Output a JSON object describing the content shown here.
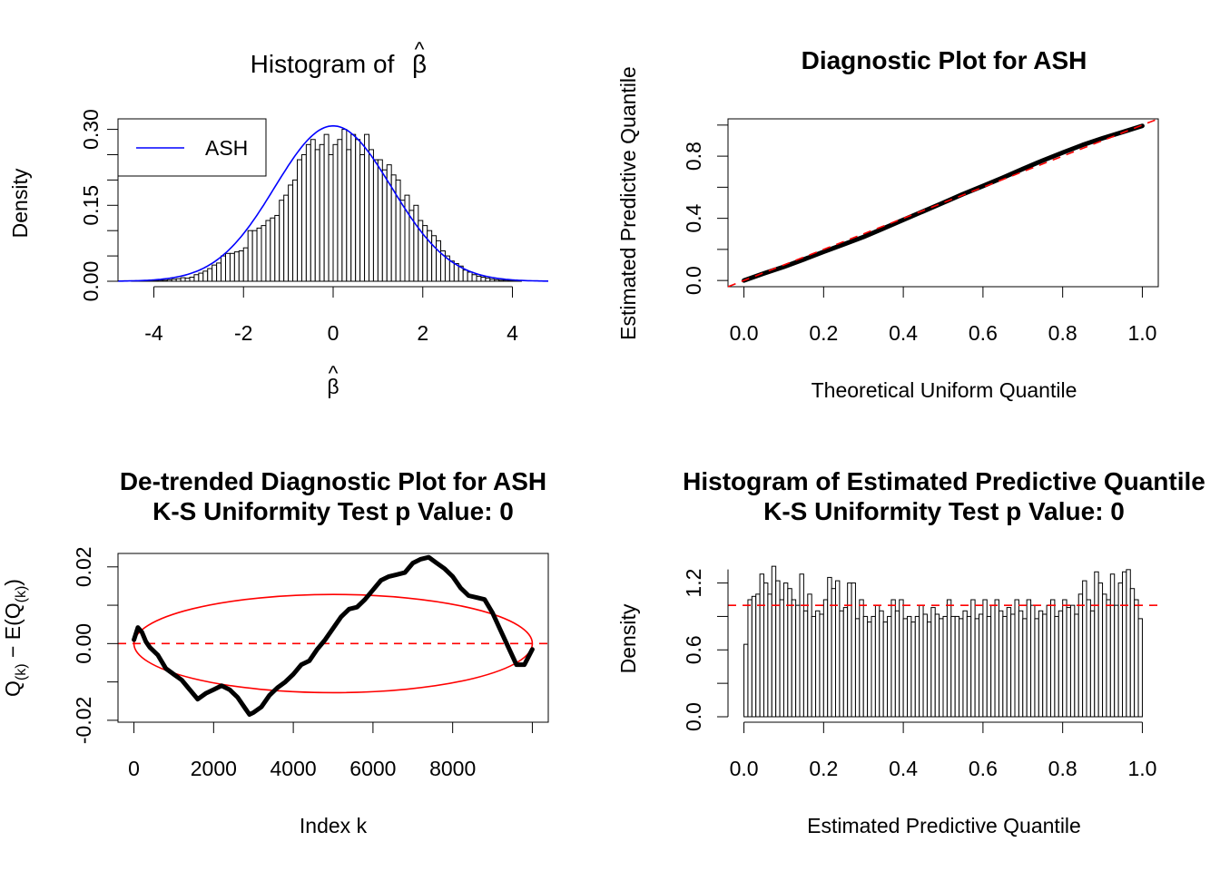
{
  "colors": {
    "ash_line": "#0000ff",
    "reference": "#ff0000",
    "bars": "#000000",
    "points": "#000000"
  },
  "chart_data": [
    {
      "id": "p1",
      "type": "bar",
      "title": "Histogram of β̂",
      "title_text": "Histogram of ",
      "title_symbol": "β",
      "title_hat": "^",
      "xlabel_symbol": "β",
      "xlabel_hat": "^",
      "ylabel": "Density",
      "xlim": [
        -4.8,
        4.8
      ],
      "ylim": [
        0,
        0.31
      ],
      "xticks": [
        -4,
        -2,
        0,
        2,
        4
      ],
      "xtick_labels": [
        "-4",
        "-2",
        "0",
        "2",
        "4"
      ],
      "yticks": [
        0.0,
        0.15,
        0.3
      ],
      "ytick_labels": [
        "0.00",
        "0.15",
        "0.30"
      ],
      "yminor": [
        0.05,
        0.1,
        0.2,
        0.25
      ],
      "bin_width": 0.1,
      "legend": {
        "label": "ASH",
        "position": "top-left"
      },
      "curve": {
        "name": "ASH",
        "kind": "normal",
        "mean": 0,
        "sd": 1.3
      },
      "bins": [
        [
          -4.8,
          0
        ],
        [
          -4.7,
          0.001
        ],
        [
          -4.6,
          0
        ],
        [
          -4.5,
          0.001
        ],
        [
          -4.4,
          0.001
        ],
        [
          -4.3,
          0.001
        ],
        [
          -4.2,
          0.001
        ],
        [
          -4.1,
          0.001
        ],
        [
          -4.0,
          0.001
        ],
        [
          -3.9,
          0.002
        ],
        [
          -3.8,
          0.002
        ],
        [
          -3.7,
          0.003
        ],
        [
          -3.6,
          0.004
        ],
        [
          -3.5,
          0.005
        ],
        [
          -3.4,
          0.007
        ],
        [
          -3.3,
          0.006
        ],
        [
          -3.2,
          0.008
        ],
        [
          -3.1,
          0.013
        ],
        [
          -3.0,
          0.016
        ],
        [
          -2.9,
          0.02
        ],
        [
          -2.8,
          0.025
        ],
        [
          -2.7,
          0.032
        ],
        [
          -2.6,
          0.036
        ],
        [
          -2.5,
          0.05
        ],
        [
          -2.4,
          0.055
        ],
        [
          -2.3,
          0.055
        ],
        [
          -2.2,
          0.058
        ],
        [
          -2.1,
          0.06
        ],
        [
          -2.0,
          0.066
        ],
        [
          -1.9,
          0.1
        ],
        [
          -1.8,
          0.1
        ],
        [
          -1.7,
          0.105
        ],
        [
          -1.6,
          0.11
        ],
        [
          -1.5,
          0.12
        ],
        [
          -1.4,
          0.125
        ],
        [
          -1.3,
          0.13
        ],
        [
          -1.2,
          0.16
        ],
        [
          -1.1,
          0.17
        ],
        [
          -1.0,
          0.19
        ],
        [
          -0.9,
          0.2
        ],
        [
          -0.8,
          0.24
        ],
        [
          -0.7,
          0.25
        ],
        [
          -0.6,
          0.27
        ],
        [
          -0.5,
          0.28
        ],
        [
          -0.4,
          0.26
        ],
        [
          -0.3,
          0.27
        ],
        [
          -0.2,
          0.29
        ],
        [
          -0.1,
          0.25
        ],
        [
          0.0,
          0.27
        ],
        [
          0.1,
          0.28
        ],
        [
          0.2,
          0.3
        ],
        [
          0.3,
          0.26
        ],
        [
          0.4,
          0.29
        ],
        [
          0.5,
          0.28
        ],
        [
          0.6,
          0.25
        ],
        [
          0.7,
          0.29
        ],
        [
          0.8,
          0.26
        ],
        [
          0.9,
          0.24
        ],
        [
          1.0,
          0.24
        ],
        [
          1.1,
          0.22
        ],
        [
          1.2,
          0.23
        ],
        [
          1.3,
          0.21
        ],
        [
          1.4,
          0.2
        ],
        [
          1.5,
          0.16
        ],
        [
          1.6,
          0.17
        ],
        [
          1.7,
          0.14
        ],
        [
          1.8,
          0.15
        ],
        [
          1.9,
          0.12
        ],
        [
          2.0,
          0.11
        ],
        [
          2.1,
          0.1
        ],
        [
          2.2,
          0.09
        ],
        [
          2.3,
          0.08
        ],
        [
          2.4,
          0.06
        ],
        [
          2.5,
          0.05
        ],
        [
          2.6,
          0.04
        ],
        [
          2.7,
          0.035
        ],
        [
          2.8,
          0.03
        ],
        [
          2.9,
          0.022
        ],
        [
          3.0,
          0.018
        ],
        [
          3.1,
          0.013
        ],
        [
          3.2,
          0.01
        ],
        [
          3.3,
          0.008
        ],
        [
          3.4,
          0.006
        ],
        [
          3.5,
          0.004
        ],
        [
          3.6,
          0.003
        ],
        [
          3.7,
          0.002
        ],
        [
          3.8,
          0.002
        ],
        [
          3.9,
          0.001
        ],
        [
          4.0,
          0.001
        ],
        [
          4.1,
          0.001
        ]
      ]
    },
    {
      "id": "p2",
      "type": "scatter",
      "title": "Diagnostic Plot for ASH",
      "xlabel": "Theoretical Uniform Quantile",
      "ylabel": "Estimated Predictive Quantile",
      "xlim": [
        -0.04,
        1.04
      ],
      "ylim": [
        -0.04,
        1.04
      ],
      "xticks": [
        0,
        0.2,
        0.4,
        0.6,
        0.8,
        1.0
      ],
      "xtick_labels": [
        "0.0",
        "0.2",
        "0.4",
        "0.6",
        "0.8",
        "1.0"
      ],
      "yticks": [
        0,
        0.4,
        0.8
      ],
      "ytick_labels": [
        "0.0",
        "0.4",
        "0.8"
      ],
      "yminor": [
        0.2,
        0.6,
        1.0
      ],
      "reference_line": {
        "intercept": 0,
        "slope": 1,
        "style": "dashed"
      },
      "x": [
        0,
        0.05,
        0.1,
        0.15,
        0.2,
        0.25,
        0.3,
        0.35,
        0.4,
        0.45,
        0.5,
        0.55,
        0.6,
        0.65,
        0.7,
        0.75,
        0.8,
        0.85,
        0.9,
        0.95,
        1.0
      ],
      "y": [
        0.0,
        0.045,
        0.088,
        0.135,
        0.184,
        0.232,
        0.28,
        0.335,
        0.39,
        0.445,
        0.5,
        0.556,
        0.608,
        0.662,
        0.718,
        0.772,
        0.823,
        0.872,
        0.915,
        0.955,
        0.995
      ]
    },
    {
      "id": "p3",
      "type": "scatter",
      "title_lines": [
        "De-trended Diagnostic Plot for ASH",
        "K-S Uniformity Test p Value: 0"
      ],
      "xlabel": "Index k",
      "ylabel_parts": [
        "Q",
        "(k)",
        " − E(Q",
        "(k)",
        ")"
      ],
      "xlim": [
        -400,
        10400
      ],
      "ylim": [
        -0.0205,
        0.0235
      ],
      "xticks": [
        0,
        2000,
        4000,
        6000,
        8000
      ],
      "xtick_labels": [
        "0",
        "2000",
        "4000",
        "6000",
        "8000"
      ],
      "extra_xtick": 10000,
      "yticks": [
        -0.02,
        0,
        0.02
      ],
      "ytick_labels": [
        "-0.02",
        "0.00",
        "0.02"
      ],
      "yminor": [
        -0.01,
        0.01
      ],
      "reference_line": {
        "y": 0,
        "style": "dashed"
      },
      "ellipse": {
        "cx": 5000,
        "cy": 0,
        "rx": 5000,
        "ry": 0.0128
      },
      "x": [
        0,
        100,
        200,
        300,
        400,
        600,
        800,
        1000,
        1200,
        1400,
        1600,
        1800,
        2000,
        2200,
        2400,
        2600,
        2800,
        2900,
        3000,
        3200,
        3400,
        3600,
        3800,
        4000,
        4200,
        4400,
        4600,
        4800,
        5000,
        5200,
        5400,
        5600,
        5800,
        6000,
        6200,
        6400,
        6600,
        6800,
        7000,
        7200,
        7400,
        7600,
        7800,
        8000,
        8200,
        8400,
        8600,
        8800,
        9000,
        9200,
        9400,
        9600,
        9800,
        10000
      ],
      "y": [
        0.001,
        0.0042,
        0.003,
        0.0005,
        -0.001,
        -0.003,
        -0.0065,
        -0.008,
        -0.0095,
        -0.012,
        -0.0145,
        -0.013,
        -0.012,
        -0.011,
        -0.012,
        -0.014,
        -0.017,
        -0.0185,
        -0.018,
        -0.0165,
        -0.0135,
        -0.0115,
        -0.01,
        -0.008,
        -0.0055,
        -0.0045,
        -0.0015,
        0.001,
        0.004,
        0.007,
        0.009,
        0.0095,
        0.0115,
        0.014,
        0.0165,
        0.0175,
        0.018,
        0.0185,
        0.021,
        0.022,
        0.0225,
        0.021,
        0.0195,
        0.0175,
        0.0145,
        0.0125,
        0.012,
        0.0115,
        0.008,
        0.0035,
        -0.001,
        -0.0055,
        -0.0055,
        -0.0015
      ]
    },
    {
      "id": "p4",
      "type": "bar",
      "title_lines": [
        "Histogram of Estimated Predictive Quantile",
        "K-S Uniformity Test p Value: 0"
      ],
      "xlabel": "Estimated Predictive Quantile",
      "ylabel": "Density",
      "xlim": [
        -0.04,
        1.04
      ],
      "ylim": [
        0,
        1.4
      ],
      "xticks": [
        0,
        0.2,
        0.4,
        0.6,
        0.8,
        1.0
      ],
      "xtick_labels": [
        "0.0",
        "0.2",
        "0.4",
        "0.6",
        "0.8",
        "1.0"
      ],
      "yticks": [
        0,
        0.6,
        1.2
      ],
      "ytick_labels": [
        "0.0",
        "0.6",
        "1.2"
      ],
      "yminor": [
        0.3,
        0.9
      ],
      "bin_width": 0.01,
      "reference_line": {
        "y": 1.0,
        "style": "dashed"
      },
      "values": [
        0.65,
        1.05,
        1.08,
        1.1,
        1.28,
        1.2,
        1.1,
        1.35,
        1.22,
        1.05,
        1.2,
        1.15,
        1.05,
        1.0,
        1.28,
        0.95,
        1.1,
        0.9,
        0.95,
        0.92,
        1.05,
        1.25,
        1.15,
        1.22,
        0.95,
        0.98,
        1.2,
        1.2,
        0.88,
        1.05,
        0.9,
        0.85,
        0.9,
        1.0,
        0.95,
        0.85,
        0.9,
        1.05,
        0.95,
        1.05,
        0.88,
        0.9,
        0.85,
        0.9,
        1.0,
        0.92,
        0.85,
        0.98,
        0.92,
        0.88,
        0.9,
        1.05,
        0.9,
        0.9,
        0.88,
        0.95,
        0.9,
        1.05,
        0.88,
        0.92,
        1.05,
        0.9,
        1.0,
        1.05,
        0.95,
        0.9,
        0.98,
        0.92,
        1.05,
        0.95,
        0.88,
        1.05,
        1.0,
        0.88,
        0.95,
        0.92,
        1.0,
        1.05,
        0.9,
        0.95,
        1.05,
        0.98,
        1.0,
        0.92,
        1.1,
        1.22,
        1.05,
        0.95,
        1.3,
        1.2,
        1.1,
        1.05,
        1.28,
        1.0,
        1.2,
        1.3,
        1.32,
        1.15,
        1.05,
        0.88
      ]
    }
  ]
}
